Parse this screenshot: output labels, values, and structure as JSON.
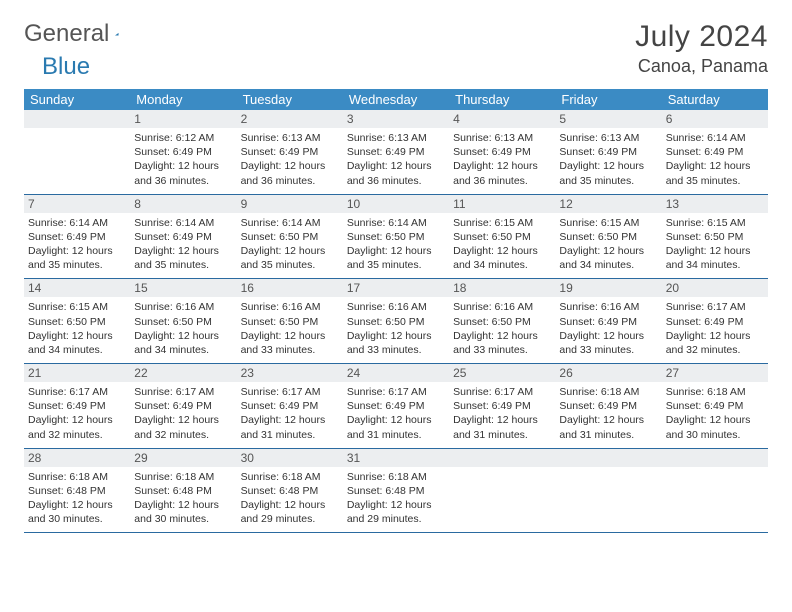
{
  "logo": {
    "text1": "General",
    "text2": "Blue"
  },
  "title": "July 2024",
  "location": "Canoa, Panama",
  "colors": {
    "header_bg": "#3b8bc4",
    "header_text": "#ffffff",
    "daynum_bg": "#eceef0",
    "row_border": "#2a6aa0",
    "logo_blue": "#2a7ab0"
  },
  "day_headers": [
    "Sunday",
    "Monday",
    "Tuesday",
    "Wednesday",
    "Thursday",
    "Friday",
    "Saturday"
  ],
  "weeks": [
    [
      {
        "blank": true
      },
      {
        "n": "1",
        "sunrise": "6:12 AM",
        "sunset": "6:49 PM",
        "daylight": "12 hours and 36 minutes."
      },
      {
        "n": "2",
        "sunrise": "6:13 AM",
        "sunset": "6:49 PM",
        "daylight": "12 hours and 36 minutes."
      },
      {
        "n": "3",
        "sunrise": "6:13 AM",
        "sunset": "6:49 PM",
        "daylight": "12 hours and 36 minutes."
      },
      {
        "n": "4",
        "sunrise": "6:13 AM",
        "sunset": "6:49 PM",
        "daylight": "12 hours and 36 minutes."
      },
      {
        "n": "5",
        "sunrise": "6:13 AM",
        "sunset": "6:49 PM",
        "daylight": "12 hours and 35 minutes."
      },
      {
        "n": "6",
        "sunrise": "6:14 AM",
        "sunset": "6:49 PM",
        "daylight": "12 hours and 35 minutes."
      }
    ],
    [
      {
        "n": "7",
        "sunrise": "6:14 AM",
        "sunset": "6:49 PM",
        "daylight": "12 hours and 35 minutes."
      },
      {
        "n": "8",
        "sunrise": "6:14 AM",
        "sunset": "6:49 PM",
        "daylight": "12 hours and 35 minutes."
      },
      {
        "n": "9",
        "sunrise": "6:14 AM",
        "sunset": "6:50 PM",
        "daylight": "12 hours and 35 minutes."
      },
      {
        "n": "10",
        "sunrise": "6:14 AM",
        "sunset": "6:50 PM",
        "daylight": "12 hours and 35 minutes."
      },
      {
        "n": "11",
        "sunrise": "6:15 AM",
        "sunset": "6:50 PM",
        "daylight": "12 hours and 34 minutes."
      },
      {
        "n": "12",
        "sunrise": "6:15 AM",
        "sunset": "6:50 PM",
        "daylight": "12 hours and 34 minutes."
      },
      {
        "n": "13",
        "sunrise": "6:15 AM",
        "sunset": "6:50 PM",
        "daylight": "12 hours and 34 minutes."
      }
    ],
    [
      {
        "n": "14",
        "sunrise": "6:15 AM",
        "sunset": "6:50 PM",
        "daylight": "12 hours and 34 minutes."
      },
      {
        "n": "15",
        "sunrise": "6:16 AM",
        "sunset": "6:50 PM",
        "daylight": "12 hours and 34 minutes."
      },
      {
        "n": "16",
        "sunrise": "6:16 AM",
        "sunset": "6:50 PM",
        "daylight": "12 hours and 33 minutes."
      },
      {
        "n": "17",
        "sunrise": "6:16 AM",
        "sunset": "6:50 PM",
        "daylight": "12 hours and 33 minutes."
      },
      {
        "n": "18",
        "sunrise": "6:16 AM",
        "sunset": "6:50 PM",
        "daylight": "12 hours and 33 minutes."
      },
      {
        "n": "19",
        "sunrise": "6:16 AM",
        "sunset": "6:49 PM",
        "daylight": "12 hours and 33 minutes."
      },
      {
        "n": "20",
        "sunrise": "6:17 AM",
        "sunset": "6:49 PM",
        "daylight": "12 hours and 32 minutes."
      }
    ],
    [
      {
        "n": "21",
        "sunrise": "6:17 AM",
        "sunset": "6:49 PM",
        "daylight": "12 hours and 32 minutes."
      },
      {
        "n": "22",
        "sunrise": "6:17 AM",
        "sunset": "6:49 PM",
        "daylight": "12 hours and 32 minutes."
      },
      {
        "n": "23",
        "sunrise": "6:17 AM",
        "sunset": "6:49 PM",
        "daylight": "12 hours and 31 minutes."
      },
      {
        "n": "24",
        "sunrise": "6:17 AM",
        "sunset": "6:49 PM",
        "daylight": "12 hours and 31 minutes."
      },
      {
        "n": "25",
        "sunrise": "6:17 AM",
        "sunset": "6:49 PM",
        "daylight": "12 hours and 31 minutes."
      },
      {
        "n": "26",
        "sunrise": "6:18 AM",
        "sunset": "6:49 PM",
        "daylight": "12 hours and 31 minutes."
      },
      {
        "n": "27",
        "sunrise": "6:18 AM",
        "sunset": "6:49 PM",
        "daylight": "12 hours and 30 minutes."
      }
    ],
    [
      {
        "n": "28",
        "sunrise": "6:18 AM",
        "sunset": "6:48 PM",
        "daylight": "12 hours and 30 minutes."
      },
      {
        "n": "29",
        "sunrise": "6:18 AM",
        "sunset": "6:48 PM",
        "daylight": "12 hours and 30 minutes."
      },
      {
        "n": "30",
        "sunrise": "6:18 AM",
        "sunset": "6:48 PM",
        "daylight": "12 hours and 29 minutes."
      },
      {
        "n": "31",
        "sunrise": "6:18 AM",
        "sunset": "6:48 PM",
        "daylight": "12 hours and 29 minutes."
      },
      {
        "blank": true
      },
      {
        "blank": true
      },
      {
        "blank": true
      }
    ]
  ],
  "labels": {
    "sunrise": "Sunrise:",
    "sunset": "Sunset:",
    "daylight": "Daylight:"
  }
}
